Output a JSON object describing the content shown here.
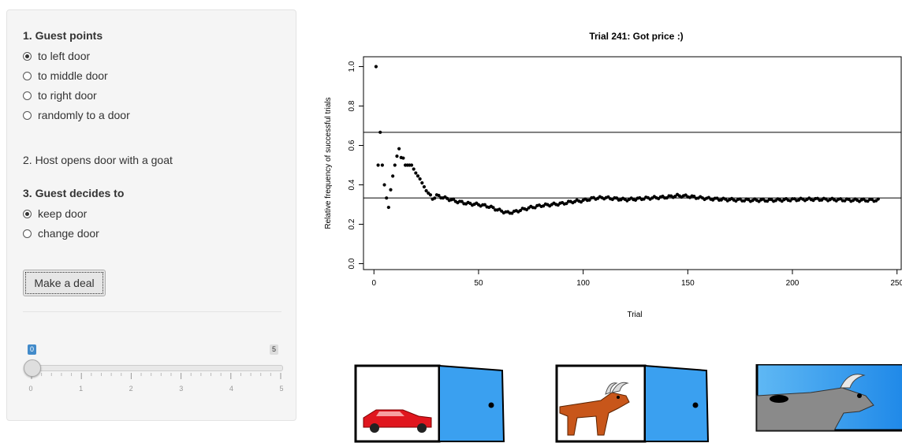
{
  "sidebar": {
    "step1_title": "1. Guest points",
    "step1_options": [
      {
        "label": "to left door",
        "selected": true
      },
      {
        "label": "to middle door",
        "selected": false
      },
      {
        "label": "to right door",
        "selected": false
      },
      {
        "label": "randomly to a door",
        "selected": false
      }
    ],
    "step2_text": "2. Host opens door with a goat",
    "step3_title": "3. Guest decides to",
    "step3_options": [
      {
        "label": "keep door",
        "selected": true
      },
      {
        "label": "change door",
        "selected": false
      }
    ],
    "deal_button": "Make a deal",
    "slider": {
      "value": "0",
      "max": "5",
      "ticks": [
        "0",
        "1",
        "2",
        "3",
        "4",
        "5"
      ]
    }
  },
  "chart_data": {
    "type": "scatter",
    "title": "Trial 241: Got price :)",
    "xlabel": "Trial",
    "ylabel": "Relative frequency of successful trials",
    "xlim": [
      0,
      250
    ],
    "ylim": [
      0,
      1
    ],
    "xticks": [
      "0",
      "50",
      "100",
      "150",
      "200",
      "250"
    ],
    "yticks": [
      "0.0",
      "0.2",
      "0.4",
      "0.6",
      "0.8",
      "1.0"
    ],
    "reference_lines": [
      0.6667,
      0.3333
    ],
    "anchors": [
      [
        1,
        1.0
      ],
      [
        2,
        0.5
      ],
      [
        3,
        0.6667
      ],
      [
        4,
        0.5
      ],
      [
        5,
        0.4
      ],
      [
        6,
        0.3333
      ],
      [
        7,
        0.2857
      ],
      [
        8,
        0.375
      ],
      [
        9,
        0.4444
      ],
      [
        10,
        0.5
      ],
      [
        11,
        0.5455
      ],
      [
        12,
        0.5833
      ],
      [
        13,
        0.5385
      ],
      [
        14,
        0.5357
      ],
      [
        15,
        0.5
      ],
      [
        16,
        0.5
      ],
      [
        17,
        0.5
      ],
      [
        18,
        0.5
      ],
      [
        19,
        0.48
      ],
      [
        20,
        0.46
      ],
      [
        22,
        0.43
      ],
      [
        25,
        0.37
      ],
      [
        28,
        0.33
      ],
      [
        30,
        0.345
      ],
      [
        35,
        0.33
      ],
      [
        40,
        0.315
      ],
      [
        45,
        0.305
      ],
      [
        50,
        0.3
      ],
      [
        55,
        0.29
      ],
      [
        60,
        0.27
      ],
      [
        64,
        0.258
      ],
      [
        67,
        0.262
      ],
      [
        70,
        0.272
      ],
      [
        75,
        0.285
      ],
      [
        80,
        0.295
      ],
      [
        85,
        0.3
      ],
      [
        90,
        0.305
      ],
      [
        95,
        0.315
      ],
      [
        100,
        0.32
      ],
      [
        105,
        0.332
      ],
      [
        110,
        0.335
      ],
      [
        115,
        0.33
      ],
      [
        120,
        0.325
      ],
      [
        125,
        0.328
      ],
      [
        130,
        0.332
      ],
      [
        135,
        0.335
      ],
      [
        140,
        0.338
      ],
      [
        145,
        0.345
      ],
      [
        150,
        0.342
      ],
      [
        155,
        0.335
      ],
      [
        160,
        0.33
      ],
      [
        165,
        0.327
      ],
      [
        170,
        0.325
      ],
      [
        175,
        0.323
      ],
      [
        180,
        0.322
      ],
      [
        190,
        0.322
      ],
      [
        200,
        0.325
      ],
      [
        210,
        0.327
      ],
      [
        220,
        0.325
      ],
      [
        230,
        0.322
      ],
      [
        241,
        0.322
      ]
    ]
  },
  "doors": [
    {
      "content": "car",
      "state": "open"
    },
    {
      "content": "goat",
      "state": "open"
    },
    {
      "content": "goat",
      "state": "open"
    }
  ]
}
